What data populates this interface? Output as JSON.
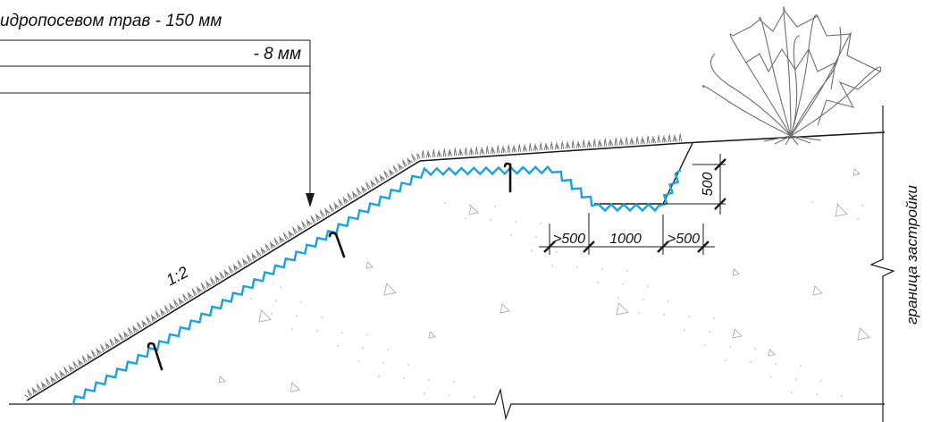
{
  "leaders": {
    "line1": "идропосевом трав  - 150 мм",
    "line2": "- 8 мм"
  },
  "slope_label": "1:2",
  "dimensions": {
    "depth": "500",
    "berm_left": ">500",
    "bottom_width": "1000",
    "berm_right": ">500"
  },
  "side_label": "граница застройки",
  "colors": {
    "geogrid": "#1aa3dc",
    "lines": "#1a1a1a",
    "grass": "#777777",
    "shrub": "#6f6f6f",
    "fill_marks": "#b5b5b5"
  },
  "icons": [
    "shrub-icon",
    "grass-cover",
    "anchor-pin-icon",
    "break-mark-icon"
  ]
}
